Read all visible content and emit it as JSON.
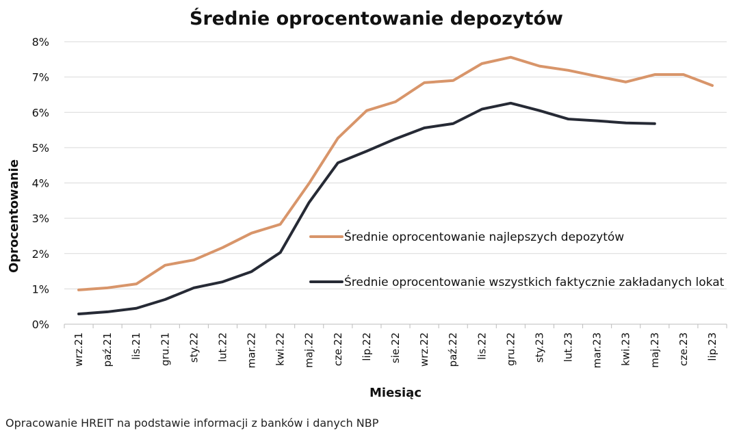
{
  "chart_data": {
    "type": "line",
    "title": "Średnie oprocentowanie depozytów",
    "xlabel": "Miesiąc",
    "ylabel": "Oprocentowanie",
    "ylim": [
      0,
      8
    ],
    "yticks": [
      "0%",
      "1%",
      "2%",
      "3%",
      "4%",
      "5%",
      "6%",
      "7%",
      "8%"
    ],
    "grid": true,
    "legend_placement": "center-right",
    "categories": [
      "wrz.21",
      "paź.21",
      "lis.21",
      "gru.21",
      "sty.22",
      "lut.22",
      "mar.22",
      "kwi.22",
      "maj.22",
      "cze.22",
      "lip.22",
      "sie.22",
      "wrz.22",
      "paź.22",
      "lis.22",
      "gru.22",
      "sty.23",
      "lut.23",
      "mar.23",
      "kwi.23",
      "maj.23",
      "cze.23",
      "lip.23"
    ],
    "series": [
      {
        "name": "Średnie oprocentowanie najlepszych depozytów",
        "color": "#D8956A",
        "values": [
          0.97,
          1.03,
          1.14,
          1.67,
          1.82,
          2.17,
          2.58,
          2.83,
          3.99,
          5.27,
          6.05,
          6.3,
          6.84,
          6.9,
          7.38,
          7.56,
          7.31,
          7.19,
          7.02,
          6.86,
          7.07,
          7.07,
          6.76
        ]
      },
      {
        "name": "Średnie oprocentowanie wszystkich faktycznie zakładanych lokat",
        "color": "#262A35",
        "values": [
          0.29,
          0.35,
          0.45,
          0.7,
          1.03,
          1.2,
          1.49,
          2.03,
          3.45,
          4.57,
          4.9,
          5.25,
          5.56,
          5.68,
          6.09,
          6.26,
          6.05,
          5.81,
          5.76,
          5.7,
          5.68,
          null,
          null
        ]
      }
    ]
  },
  "footer": "Opracowanie HREIT na podstawie informacji z banków i danych NBP"
}
